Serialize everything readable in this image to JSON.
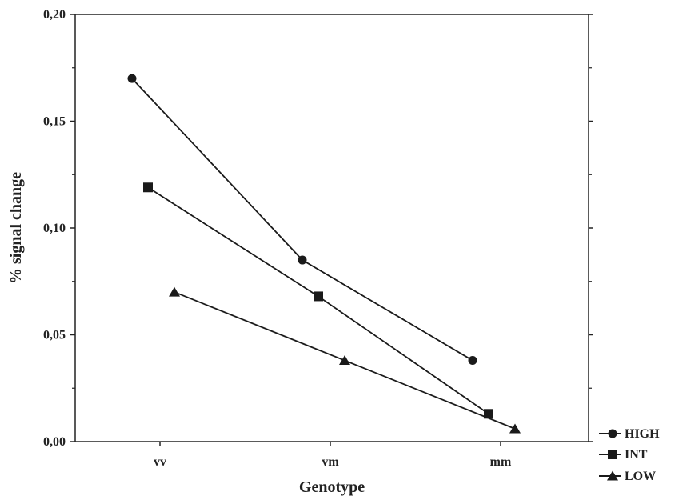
{
  "chart_data": {
    "type": "line",
    "xlabel": "Genotype",
    "ylabel": "% signal change",
    "categories": [
      "vv",
      "vm",
      "mm"
    ],
    "ylim": [
      0,
      0.2
    ],
    "y_ticks": [
      "0,00",
      "0,05",
      "0,10",
      "0,15",
      "0,20"
    ],
    "legend_position": "bottom-right, outside plot",
    "grid": false,
    "series": [
      {
        "name": "HIGH",
        "marker": "circle",
        "values": [
          0.17,
          0.085,
          0.038
        ]
      },
      {
        "name": "INT",
        "marker": "square",
        "values": [
          0.119,
          0.068,
          0.013
        ]
      },
      {
        "name": "LOW",
        "marker": "triangle",
        "values": [
          0.07,
          0.038,
          0.006
        ]
      }
    ]
  }
}
